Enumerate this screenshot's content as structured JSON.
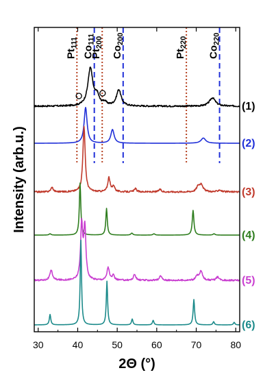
{
  "chart_data": {
    "type": "line",
    "xlabel": "2Θ (°)",
    "ylabel": "Intensity (arb.u.)",
    "xlim": [
      29,
      81
    ],
    "x_ticks": [
      30,
      40,
      50,
      60,
      70,
      80
    ],
    "y_ticks_shown": false,
    "grid": false,
    "reference_lines": [
      {
        "base": "Pt",
        "sub": "111",
        "x": 39.8,
        "style": "dotted",
        "color": "#b5401f"
      },
      {
        "base": "Co",
        "sub": "111",
        "x": 44.2,
        "style": "dashed",
        "color": "#1f2fd8"
      },
      {
        "base": "Pt",
        "sub": "200",
        "x": 46.2,
        "style": "dotted",
        "color": "#b5401f"
      },
      {
        "base": "Co",
        "sub": "200",
        "x": 51.5,
        "style": "dashed",
        "color": "#1f2fd8"
      },
      {
        "base": "Pt",
        "sub": "220",
        "x": 67.5,
        "style": "dotted",
        "color": "#b5401f"
      },
      {
        "base": "Co",
        "sub": "220",
        "x": 75.9,
        "style": "dashed",
        "color": "#1f2fd8"
      }
    ],
    "markers": [
      {
        "symbol": "circle",
        "x": 40.3,
        "series": "(1)"
      },
      {
        "symbol": "circle",
        "x": 46.3,
        "series": "(1)"
      }
    ],
    "series": [
      {
        "name": "(1)",
        "color": "#000000",
        "baseline": 0.0,
        "noise": 0.012,
        "peaks": [
          {
            "x": 43.2,
            "h": 0.58,
            "w": 0.75
          },
          {
            "x": 44.9,
            "h": 0.14,
            "w": 0.6
          },
          {
            "x": 46.8,
            "h": 0.05,
            "w": 0.6
          },
          {
            "x": 50.4,
            "h": 0.25,
            "w": 0.7
          },
          {
            "x": 74.1,
            "h": 0.13,
            "w": 0.9
          }
        ]
      },
      {
        "name": "(2)",
        "color": "#1f2fd8",
        "baseline": 0.0,
        "noise": 0.0,
        "peaks": [
          {
            "x": 42.0,
            "h": 0.55,
            "w": 0.45
          },
          {
            "x": 48.8,
            "h": 0.21,
            "w": 0.5
          },
          {
            "x": 71.8,
            "h": 0.08,
            "w": 0.7
          }
        ]
      },
      {
        "name": "(3)",
        "color": "#c0392b",
        "baseline": 0.0,
        "noise": 0.012,
        "peaks": [
          {
            "x": 33.5,
            "h": 0.07,
            "w": 0.35
          },
          {
            "x": 41.6,
            "h": 1.0,
            "w": 0.35
          },
          {
            "x": 47.9,
            "h": 0.22,
            "w": 0.35
          },
          {
            "x": 49.1,
            "h": 0.09,
            "w": 0.35
          },
          {
            "x": 54.6,
            "h": 0.05,
            "w": 0.35
          },
          {
            "x": 60.8,
            "h": 0.04,
            "w": 0.35
          },
          {
            "x": 70.5,
            "h": 0.08,
            "w": 0.5
          },
          {
            "x": 71.3,
            "h": 0.11,
            "w": 0.5
          },
          {
            "x": 75.9,
            "h": 0.03,
            "w": 0.5
          }
        ]
      },
      {
        "name": "(4)",
        "color": "#2e7d1e",
        "baseline": 0.0,
        "noise": 0.0,
        "peaks": [
          {
            "x": 33.0,
            "h": 0.02,
            "w": 0.3
          },
          {
            "x": 40.6,
            "h": 0.8,
            "w": 0.22
          },
          {
            "x": 47.3,
            "h": 0.41,
            "w": 0.22
          },
          {
            "x": 53.7,
            "h": 0.03,
            "w": 0.3
          },
          {
            "x": 59.3,
            "h": 0.02,
            "w": 0.3
          },
          {
            "x": 69.2,
            "h": 0.38,
            "w": 0.25
          },
          {
            "x": 74.5,
            "h": 0.02,
            "w": 0.3
          }
        ]
      },
      {
        "name": "(5)",
        "color": "#c93fd0",
        "baseline": 0.0,
        "noise": 0.012,
        "peaks": [
          {
            "x": 33.3,
            "h": 0.15,
            "w": 0.4
          },
          {
            "x": 41.0,
            "h": 0.85,
            "w": 0.32
          },
          {
            "x": 41.8,
            "h": 0.8,
            "w": 0.32
          },
          {
            "x": 47.7,
            "h": 0.2,
            "w": 0.35
          },
          {
            "x": 49.0,
            "h": 0.07,
            "w": 0.35
          },
          {
            "x": 54.4,
            "h": 0.09,
            "w": 0.35
          },
          {
            "x": 61.0,
            "h": 0.07,
            "w": 0.35
          },
          {
            "x": 70.2,
            "h": 0.06,
            "w": 0.4
          },
          {
            "x": 71.2,
            "h": 0.14,
            "w": 0.45
          },
          {
            "x": 75.4,
            "h": 0.05,
            "w": 0.4
          }
        ]
      },
      {
        "name": "(6)",
        "color": "#1b8a8a",
        "baseline": 0.0,
        "noise": 0.0,
        "peaks": [
          {
            "x": 33.0,
            "h": 0.16,
            "w": 0.22
          },
          {
            "x": 40.8,
            "h": 1.3,
            "w": 0.2
          },
          {
            "x": 47.4,
            "h": 0.67,
            "w": 0.2
          },
          {
            "x": 53.8,
            "h": 0.09,
            "w": 0.22
          },
          {
            "x": 59.1,
            "h": 0.07,
            "w": 0.22
          },
          {
            "x": 69.4,
            "h": 0.39,
            "w": 0.22
          },
          {
            "x": 74.4,
            "h": 0.05,
            "w": 0.22
          },
          {
            "x": 79.6,
            "h": 0.04,
            "w": 0.22
          }
        ]
      }
    ]
  }
}
